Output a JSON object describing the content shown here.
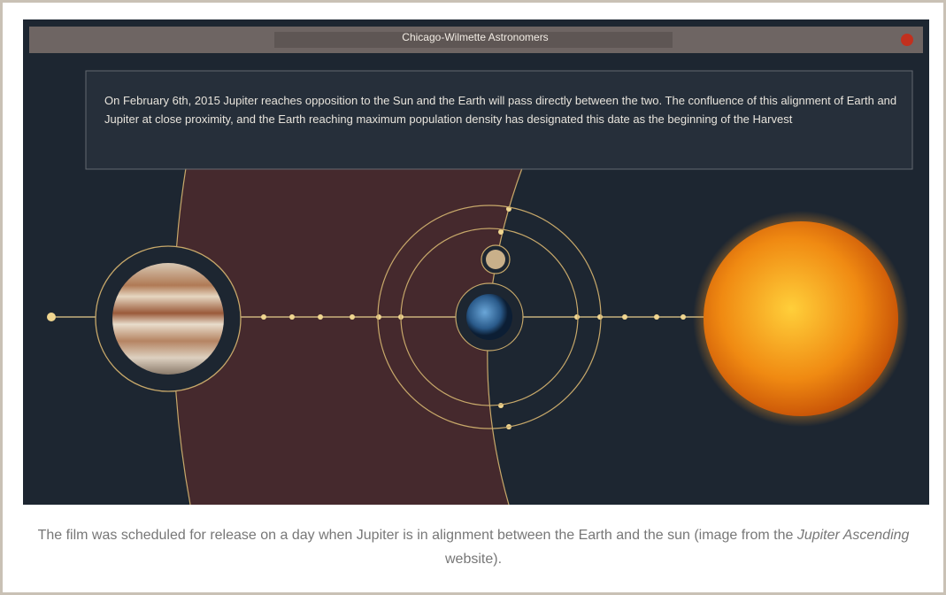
{
  "window": {
    "title": "Chicago-Wilmette Astronomers",
    "message": "On February 6th, 2015 Jupiter reaches opposition to the Sun and the Earth will pass directly between the two. The confluence of this alignment of Earth and Jupiter at close proximity, and the Earth reaching maximum population density has designated this date as the beginning of the Harvest"
  },
  "caption": {
    "before": "The film was scheduled for release on a day when Jupiter is in alignment between the Earth and the sun (image from the ",
    "title": "Jupiter Ascending",
    "after": " website)."
  }
}
